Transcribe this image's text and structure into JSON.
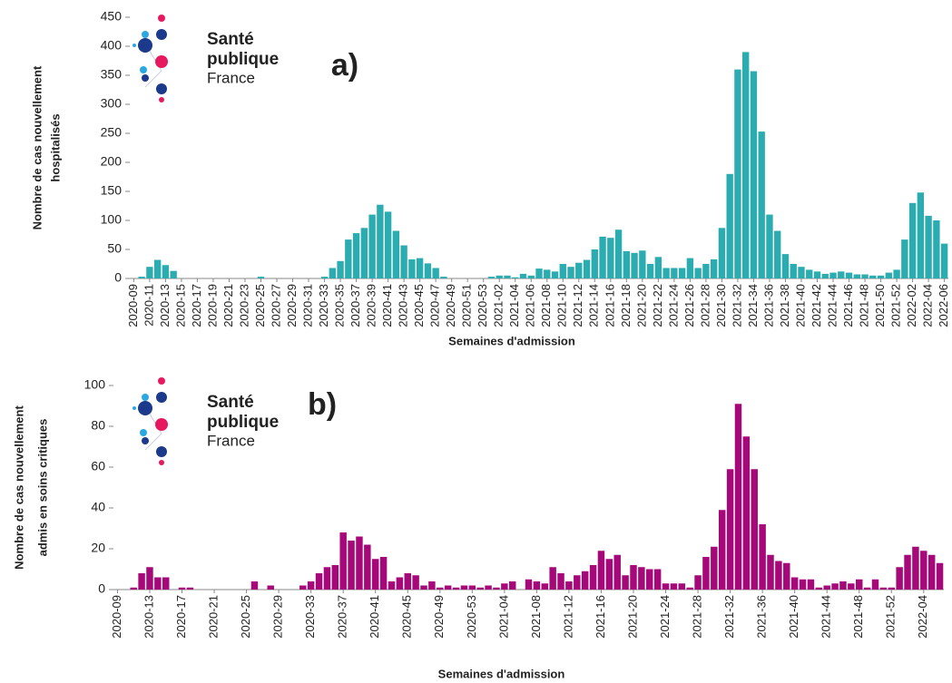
{
  "chart_data": [
    {
      "type": "bar",
      "panel_label": "a)",
      "logo_text": [
        "Santé",
        "publique",
        "France"
      ],
      "ylabel": [
        "Nombre de cas nouvellement",
        "hospitalisés"
      ],
      "xlabel": "Semaines d'admission",
      "color": "#2aacb0",
      "ylim": [
        0,
        450
      ],
      "yticks": [
        0,
        50,
        100,
        150,
        200,
        250,
        300,
        350,
        400,
        450
      ],
      "categories": [
        "2020-09",
        null,
        "2020-11",
        null,
        "2020-13",
        null,
        "2020-15",
        null,
        "2020-17",
        null,
        "2020-19",
        null,
        "2020-21",
        null,
        "2020-23",
        null,
        "2020-25",
        null,
        "2020-27",
        null,
        "2020-29",
        null,
        "2020-31",
        null,
        "2020-33",
        null,
        "2020-35",
        null,
        "2020-37",
        null,
        "2020-39",
        null,
        "2020-41",
        null,
        "2020-43",
        null,
        "2020-45",
        null,
        "2020-47",
        null,
        "2020-49",
        null,
        "2020-51",
        null,
        "2020-53",
        null,
        "2021-02",
        null,
        "2021-04",
        null,
        "2021-06",
        null,
        "2021-08",
        null,
        "2021-10",
        null,
        "2021-12",
        null,
        "2021-14",
        null,
        "2021-16",
        null,
        "2021-18",
        null,
        "2021-20",
        null,
        "2021-22",
        null,
        "2021-24",
        null,
        "2021-26",
        null,
        "2021-28",
        null,
        "2021-30",
        null,
        "2021-32",
        null,
        "2021-34",
        null,
        "2021-36",
        null,
        "2021-38",
        null,
        "2021-40",
        null,
        "2021-42",
        null,
        "2021-44",
        null,
        "2021-46",
        null,
        "2021-48",
        null,
        "2021-50",
        null,
        "2021-52",
        null,
        "2022-02",
        null,
        "2022-04",
        null,
        "2022-06"
      ],
      "values": [
        0,
        3,
        20,
        32,
        23,
        13,
        0,
        0,
        0,
        0,
        0,
        0,
        0,
        0,
        0,
        0,
        3,
        0,
        0,
        0,
        0,
        0,
        0,
        0,
        3,
        18,
        30,
        67,
        78,
        87,
        110,
        127,
        115,
        82,
        57,
        33,
        35,
        26,
        18,
        3,
        0,
        0,
        0,
        0,
        0,
        3,
        5,
        5,
        2,
        8,
        5,
        17,
        15,
        12,
        25,
        20,
        27,
        32,
        50,
        72,
        70,
        84,
        47,
        44,
        48,
        25,
        37,
        18,
        18,
        18,
        35,
        18,
        25,
        33,
        87,
        180,
        360,
        390,
        357,
        253,
        110,
        82,
        42,
        25,
        20,
        15,
        12,
        8,
        10,
        12,
        10,
        7,
        7,
        5,
        5,
        10,
        15,
        67,
        130,
        148,
        108,
        100,
        60
      ]
    },
    {
      "type": "bar",
      "panel_label": "b)",
      "logo_text": [
        "Santé",
        "publique",
        "France"
      ],
      "ylabel": [
        "Nombre de cas nouvellement",
        "admis en soins critiques"
      ],
      "xlabel": "Semaines d'admission",
      "color": "#a6087a",
      "ylim": [
        0,
        100
      ],
      "yticks": [
        0,
        20,
        40,
        60,
        80,
        100
      ],
      "categories": [
        "2020-09",
        null,
        null,
        null,
        "2020-13",
        null,
        null,
        null,
        "2020-17",
        null,
        null,
        null,
        "2020-21",
        null,
        null,
        null,
        "2020-25",
        null,
        null,
        null,
        "2020-29",
        null,
        null,
        null,
        "2020-33",
        null,
        null,
        null,
        "2020-37",
        null,
        null,
        null,
        "2020-41",
        null,
        null,
        null,
        "2020-45",
        null,
        null,
        null,
        "2020-49",
        null,
        null,
        null,
        "2020-53",
        null,
        null,
        null,
        "2021-04",
        null,
        null,
        null,
        "2021-08",
        null,
        null,
        null,
        "2021-12",
        null,
        null,
        null,
        "2021-16",
        null,
        null,
        null,
        "2021-20",
        null,
        null,
        null,
        "2021-24",
        null,
        null,
        null,
        "2021-28",
        null,
        null,
        null,
        "2021-32",
        null,
        null,
        null,
        "2021-36",
        null,
        null,
        null,
        "2021-40",
        null,
        null,
        null,
        "2021-44",
        null,
        null,
        null,
        "2021-48",
        null,
        null,
        null,
        "2021-52",
        null,
        null,
        null,
        "2022-04",
        null,
        null
      ],
      "values": [
        0,
        0,
        1,
        8,
        11,
        6,
        6,
        0,
        1,
        1,
        0,
        0,
        0,
        0,
        0,
        0,
        0,
        4,
        0,
        2,
        0,
        0,
        0,
        2,
        4,
        8,
        11,
        12,
        28,
        24,
        26,
        22,
        15,
        16,
        4,
        6,
        8,
        7,
        2,
        4,
        1,
        2,
        1,
        2,
        2,
        1,
        2,
        1,
        3,
        4,
        0,
        5,
        4,
        3,
        11,
        8,
        4,
        7,
        9,
        12,
        19,
        15,
        17,
        7,
        12,
        11,
        10,
        10,
        3,
        3,
        3,
        1,
        7,
        16,
        21,
        39,
        59,
        91,
        75,
        59,
        32,
        17,
        14,
        13,
        6,
        5,
        5,
        1,
        2,
        3,
        4,
        3,
        5,
        1,
        5,
        1,
        1,
        11,
        17,
        21,
        19,
        17,
        13
      ]
    }
  ]
}
